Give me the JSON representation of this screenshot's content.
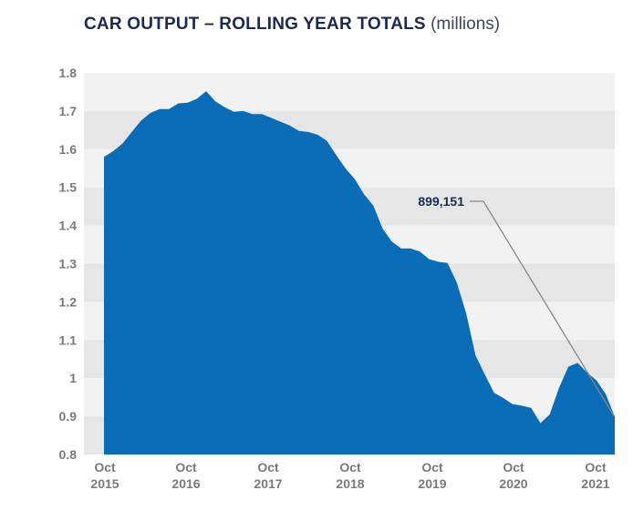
{
  "chart_data": {
    "type": "area",
    "title": "CAR OUTPUT – ROLLING YEAR TOTALS",
    "unit": "(millions)",
    "ylim": [
      0.8,
      1.8
    ],
    "yticks": [
      "0.8",
      "0.9",
      "1",
      "1.1",
      "1.2",
      "1.3",
      "1.4",
      "1.5",
      "1.6",
      "1.7",
      "1.8"
    ],
    "xticks": [
      {
        "month": "Oct",
        "year": "2015"
      },
      {
        "month": "Oct",
        "year": "2016"
      },
      {
        "month": "Oct",
        "year": "2017"
      },
      {
        "month": "Oct",
        "year": "2018"
      },
      {
        "month": "Oct",
        "year": "2019"
      },
      {
        "month": "Oct",
        "year": "2020"
      },
      {
        "month": "Oct",
        "year": "2021"
      }
    ],
    "grid": "horizontal bands",
    "colors": {
      "area": "#0a6bb7",
      "band_dark": "#e6e6e6",
      "band_light": "#f2f2f2",
      "annotation_line": "#888888"
    },
    "annotation": {
      "label": "899,151",
      "value": 0.899151
    },
    "series": [
      {
        "values": [
          1.58,
          1.595,
          1.615,
          1.645,
          1.675,
          1.695,
          1.705,
          1.705,
          1.72,
          1.722,
          1.732,
          1.752,
          1.725,
          1.71,
          1.698,
          1.7,
          1.692,
          1.692,
          1.682,
          1.672,
          1.662,
          1.648,
          1.645,
          1.638,
          1.622,
          1.585,
          1.55,
          1.522,
          1.482,
          1.452,
          1.392,
          1.358,
          1.34,
          1.34,
          1.332,
          1.312,
          1.305,
          1.302,
          1.25,
          1.17,
          1.06,
          1.01,
          0.962,
          0.948,
          0.932,
          0.928,
          0.922,
          0.882,
          0.905,
          0.975,
          1.03,
          1.04,
          1.015,
          0.995,
          0.96,
          0.899
        ]
      }
    ]
  }
}
